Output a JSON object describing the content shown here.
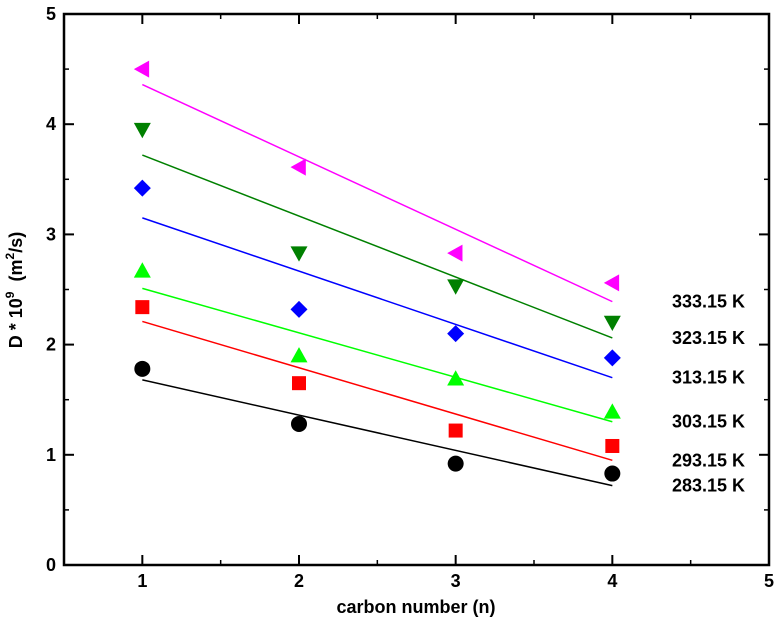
{
  "chart_data": {
    "type": "scatter",
    "title": "",
    "xlabel": "carbon number (n)",
    "ylabel": {
      "base": "D * 10",
      "exp": "9",
      "unit_open": "  (m",
      "unit_exp": "2",
      "unit_close": "/s)"
    },
    "xlim": [
      0.5,
      5
    ],
    "ylim": [
      0,
      5
    ],
    "xticks": [
      1,
      2,
      3,
      4,
      5
    ],
    "yticks": [
      0,
      1,
      2,
      3,
      4,
      5
    ],
    "grid": false,
    "legend": "direct labels at right end of each series",
    "x": [
      1,
      2,
      3,
      4
    ],
    "series": [
      {
        "name": "283.15 K",
        "color": "#000000",
        "marker": "circle",
        "values": [
          1.78,
          1.28,
          0.92,
          0.83
        ],
        "fit": [
          1.68,
          0.72
        ]
      },
      {
        "name": "293.15 K",
        "color": "#ff0000",
        "marker": "square",
        "values": [
          2.34,
          1.65,
          1.22,
          1.08
        ],
        "fit": [
          2.21,
          0.95
        ]
      },
      {
        "name": "303.15 K",
        "color": "#00ff00",
        "marker": "triangle-up",
        "values": [
          2.67,
          1.9,
          1.69,
          1.39
        ],
        "fit": [
          2.51,
          1.3
        ]
      },
      {
        "name": "313.15 K",
        "color": "#0000ff",
        "marker": "diamond",
        "values": [
          3.42,
          2.32,
          2.1,
          1.88
        ],
        "fit": [
          3.15,
          1.7
        ]
      },
      {
        "name": "323.15 K",
        "color": "#008000",
        "marker": "triangle-down",
        "values": [
          3.95,
          2.83,
          2.53,
          2.2
        ],
        "fit": [
          3.72,
          2.06
        ]
      },
      {
        "name": "333.15 K",
        "color": "#ff00ff",
        "marker": "triangle-left",
        "values": [
          4.5,
          3.61,
          2.83,
          2.56
        ],
        "fit": [
          4.36,
          2.39
        ]
      }
    ]
  }
}
